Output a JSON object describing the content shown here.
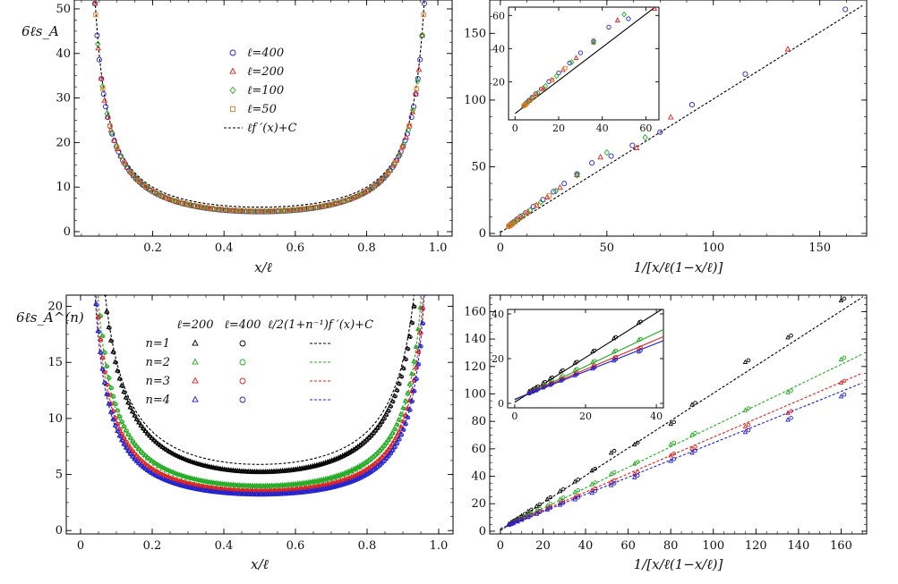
{
  "chart_data": [
    {
      "type": "scatter",
      "panel": "top-left",
      "ylabel": "6ℓs_A",
      "xlabel": "x/ℓ",
      "xlim": [
        -0.02,
        1.04
      ],
      "ylim": [
        -1,
        52
      ],
      "xticks": [
        "0.2",
        "0.4",
        "0.6",
        "0.8",
        "1.0"
      ],
      "xtick_values": [
        0.2,
        0.4,
        0.6,
        0.8,
        1.0
      ],
      "yticks": [
        "0",
        "10",
        "20",
        "30",
        "40",
        "50"
      ],
      "ytick_values": [
        0,
        10,
        20,
        30,
        40,
        50
      ],
      "legend_position": "upper-center",
      "legend": [
        "ℓ=400",
        "ℓ=200",
        "ℓ=100",
        "ℓ=50",
        "ℓf ′(x)+C"
      ],
      "series": [
        {
          "name": "ℓ=400",
          "marker": "circle",
          "color": "#2222cc",
          "func": "pi2",
          "a": 2.0,
          "b": 5.0
        },
        {
          "name": "ℓ=200",
          "marker": "triangle",
          "color": "#dd2222",
          "func": "pi2",
          "a": 2.0,
          "b": 5.0
        },
        {
          "name": "ℓ=100",
          "marker": "diamond",
          "color": "#22aa22",
          "func": "pi2",
          "a": 2.0,
          "b": 5.05
        },
        {
          "name": "ℓ=50",
          "marker": "square",
          "color": "#ee7722",
          "func": "pi2",
          "a": 2.0,
          "b": 5.1
        },
        {
          "name": "ℓf ′(x)+C",
          "marker": "line",
          "color": "#000000",
          "func": "pi2",
          "a": 2.0,
          "b": 5.5
        }
      ]
    },
    {
      "type": "scatter",
      "panel": "top-right",
      "xlabel": "1/[x/ℓ(1−x/ℓ)]",
      "xlim": [
        -5,
        172
      ],
      "ylim": [
        -2,
        175
      ],
      "xticks": [
        "0",
        "50",
        "100",
        "150"
      ],
      "xtick_values": [
        0,
        50,
        100,
        150
      ],
      "yticks": [
        "0",
        "50",
        "100",
        "150"
      ],
      "ytick_values": [
        0,
        50,
        100,
        150
      ],
      "series": [
        {
          "name": "ℓ=400",
          "marker": "circle",
          "color": "#2222cc",
          "x": [
            4.0,
            4.1,
            4.3,
            4.6,
            5.0,
            5.6,
            6.5,
            7.8,
            9.5,
            12.0,
            15.5,
            20.0,
            25.0,
            30.0,
            36.0,
            43.0,
            52.0,
            62.0,
            75.0,
            90.0,
            115.0,
            162.0
          ],
          "y": [
            5.5,
            5.7,
            6.0,
            6.4,
            7.0,
            7.8,
            8.9,
            10.6,
            12.7,
            15.6,
            20.1,
            25.3,
            31.3,
            37.4,
            44.6,
            52.9,
            58.0,
            66.0,
            76.0,
            96.5,
            119.5,
            168.0
          ]
        },
        {
          "name": "ℓ=200",
          "marker": "triangle",
          "color": "#dd2222",
          "x": [
            4.0,
            4.3,
            4.8,
            5.5,
            6.5,
            8.0,
            10.0,
            13.0,
            17.0,
            22.0,
            28.0,
            36.0,
            47.0,
            64.0,
            80.0,
            135.0
          ],
          "y": [
            5.4,
            5.8,
            6.4,
            7.2,
            8.4,
            10.2,
            12.6,
            16.1,
            21.0,
            27.0,
            34.2,
            43.7,
            57.0,
            64.0,
            87.0,
            138.0
          ]
        },
        {
          "name": "ℓ=100",
          "marker": "diamond",
          "color": "#22aa22",
          "x": [
            4.0,
            4.5,
            5.2,
            6.3,
            8.0,
            10.5,
            14.0,
            19.0,
            26.0,
            36.0,
            50.0,
            68.0
          ],
          "y": [
            5.5,
            6.1,
            6.9,
            8.2,
            10.2,
            13.2,
            17.4,
            23.4,
            31.8,
            43.8,
            60.6,
            72.0
          ]
        },
        {
          "name": "ℓ=50",
          "marker": "square",
          "color": "#ee7722",
          "x": [
            4.0,
            4.6,
            5.5,
            7.0,
            9.2,
            12.5,
            17.0,
            23.0
          ],
          "y": [
            5.5,
            6.2,
            7.3,
            9.1,
            11.7,
            15.6,
            21.0,
            28.2
          ]
        },
        {
          "name": "ℓf ′(x)+C",
          "marker": "line",
          "color": "#000000",
          "x": [
            0,
            170
          ],
          "y": [
            0.8,
            170.8
          ]
        }
      ],
      "inset": {
        "xlim": [
          -3,
          66
        ],
        "ylim": [
          -3,
          65
        ],
        "xticks": [
          "0",
          "20",
          "40",
          "60"
        ],
        "xtick_values": [
          0,
          20,
          40,
          60
        ],
        "yticks": [
          "20",
          "40",
          "60"
        ],
        "ytick_values": [
          20,
          40,
          60
        ]
      }
    },
    {
      "type": "scatter",
      "panel": "bottom-left",
      "ylabel": "6ℓs_A^(n)",
      "xlabel": "x/ℓ",
      "xlim": [
        -0.04,
        1.04
      ],
      "ylim": [
        -0.3,
        21
      ],
      "xticks": [
        "0",
        "0.2",
        "0.4",
        "0.6",
        "0.8",
        "1.0"
      ],
      "xtick_values": [
        0,
        0.2,
        0.4,
        0.6,
        0.8,
        1.0
      ],
      "yticks": [
        "0",
        "5",
        "10",
        "15",
        "20"
      ],
      "ytick_values": [
        0,
        5,
        10,
        15,
        20
      ],
      "legend_position": "upper-center",
      "legend_columns": [
        "ℓ=200",
        "ℓ=400",
        "ℓ/2(1+n⁻¹)f ′(x)+C"
      ],
      "legend_rows": [
        "n=1",
        "n=2",
        "n=3",
        "n=4"
      ],
      "series": [
        {
          "name": "n=1",
          "color": "#000000",
          "curve_b": 5.9,
          "data_b": 5.25,
          "coef": 1.0
        },
        {
          "name": "n=2",
          "color": "#22aa22",
          "curve_b": 3.7,
          "data_b": 4.0,
          "coef": 0.75
        },
        {
          "name": "n=3",
          "color": "#dd2222",
          "curve_b": 3.5,
          "data_b": 3.55,
          "coef": 0.667
        },
        {
          "name": "n=4",
          "color": "#2222cc",
          "curve_b": 3.2,
          "data_b": 3.25,
          "coef": 0.625
        }
      ]
    },
    {
      "type": "scatter",
      "panel": "bottom-right",
      "xlabel": "1/[x/ℓ(1−x/ℓ)]",
      "xlim": [
        -5,
        172
      ],
      "ylim": [
        -2,
        172
      ],
      "xticks": [
        "0",
        "20",
        "40",
        "60",
        "80",
        "100",
        "120",
        "140",
        "160"
      ],
      "xtick_values": [
        0,
        20,
        40,
        60,
        80,
        100,
        120,
        140,
        160
      ],
      "yticks": [
        "0",
        "20",
        "40",
        "60",
        "80",
        "100",
        "120",
        "140",
        "160"
      ],
      "ytick_values": [
        0,
        20,
        40,
        60,
        80,
        100,
        120,
        140,
        160
      ],
      "series": [
        {
          "name": "n=1",
          "color": "#000000",
          "slope": 1.0,
          "intercept": 0.5,
          "x": [
            4,
            5,
            6,
            8,
            10,
            13,
            17,
            22,
            28,
            35,
            43,
            52,
            63,
            80,
            90,
            115,
            135,
            160
          ],
          "y": [
            5.2,
            6.1,
            7.0,
            9.0,
            11.0,
            14.2,
            18.0,
            23.1,
            29.0,
            36.0,
            44.0,
            57.0,
            63.0,
            78.0,
            92.0,
            123.0,
            141.0,
            168.0
          ]
        },
        {
          "name": "n=2",
          "color": "#22aa22",
          "slope": 0.75,
          "intercept": 1.5,
          "x": [
            4,
            5,
            6,
            8,
            10,
            13,
            17,
            22,
            28,
            35,
            43,
            52,
            63,
            80,
            90,
            115,
            135,
            160
          ],
          "y": [
            4.6,
            5.4,
            6.2,
            7.8,
            9.3,
            11.7,
            14.8,
            18.4,
            23.0,
            28.3,
            34.0,
            41.5,
            49.0,
            63.0,
            70.0,
            88.0,
            101.0,
            125.0
          ]
        },
        {
          "name": "n=3",
          "color": "#dd2222",
          "slope": 0.667,
          "intercept": 1.8,
          "x": [
            4,
            5,
            6,
            8,
            10,
            13,
            17,
            22,
            28,
            35,
            43,
            52,
            63,
            80,
            90,
            115,
            135,
            160
          ],
          "y": [
            4.5,
            5.2,
            5.9,
            7.3,
            8.6,
            10.6,
            13.2,
            16.4,
            20.2,
            24.5,
            29.6,
            35.6,
            41.5,
            55.0,
            60.0,
            76.0,
            86.0,
            108.0
          ]
        },
        {
          "name": "n=4",
          "color": "#2222cc",
          "slope": 0.625,
          "intercept": 1.8,
          "x": [
            4,
            5,
            6,
            8,
            10,
            13,
            17,
            22,
            28,
            35,
            43,
            52,
            63,
            80,
            90,
            115,
            135,
            160
          ],
          "y": [
            4.3,
            5.0,
            5.6,
            6.9,
            8.1,
            10.0,
            12.4,
            15.4,
            19.0,
            23.0,
            27.7,
            33.3,
            39.0,
            51.0,
            57.0,
            72.0,
            81.0,
            98.0
          ]
        }
      ],
      "inset": {
        "xlim": [
          -2,
          42
        ],
        "ylim": [
          -2,
          42
        ],
        "xticks": [
          "0",
          "20",
          "40"
        ],
        "xtick_values": [
          0,
          20,
          40
        ],
        "yticks": [
          "0",
          "20",
          "40"
        ],
        "ytick_values": [
          0,
          20,
          40
        ]
      }
    }
  ]
}
